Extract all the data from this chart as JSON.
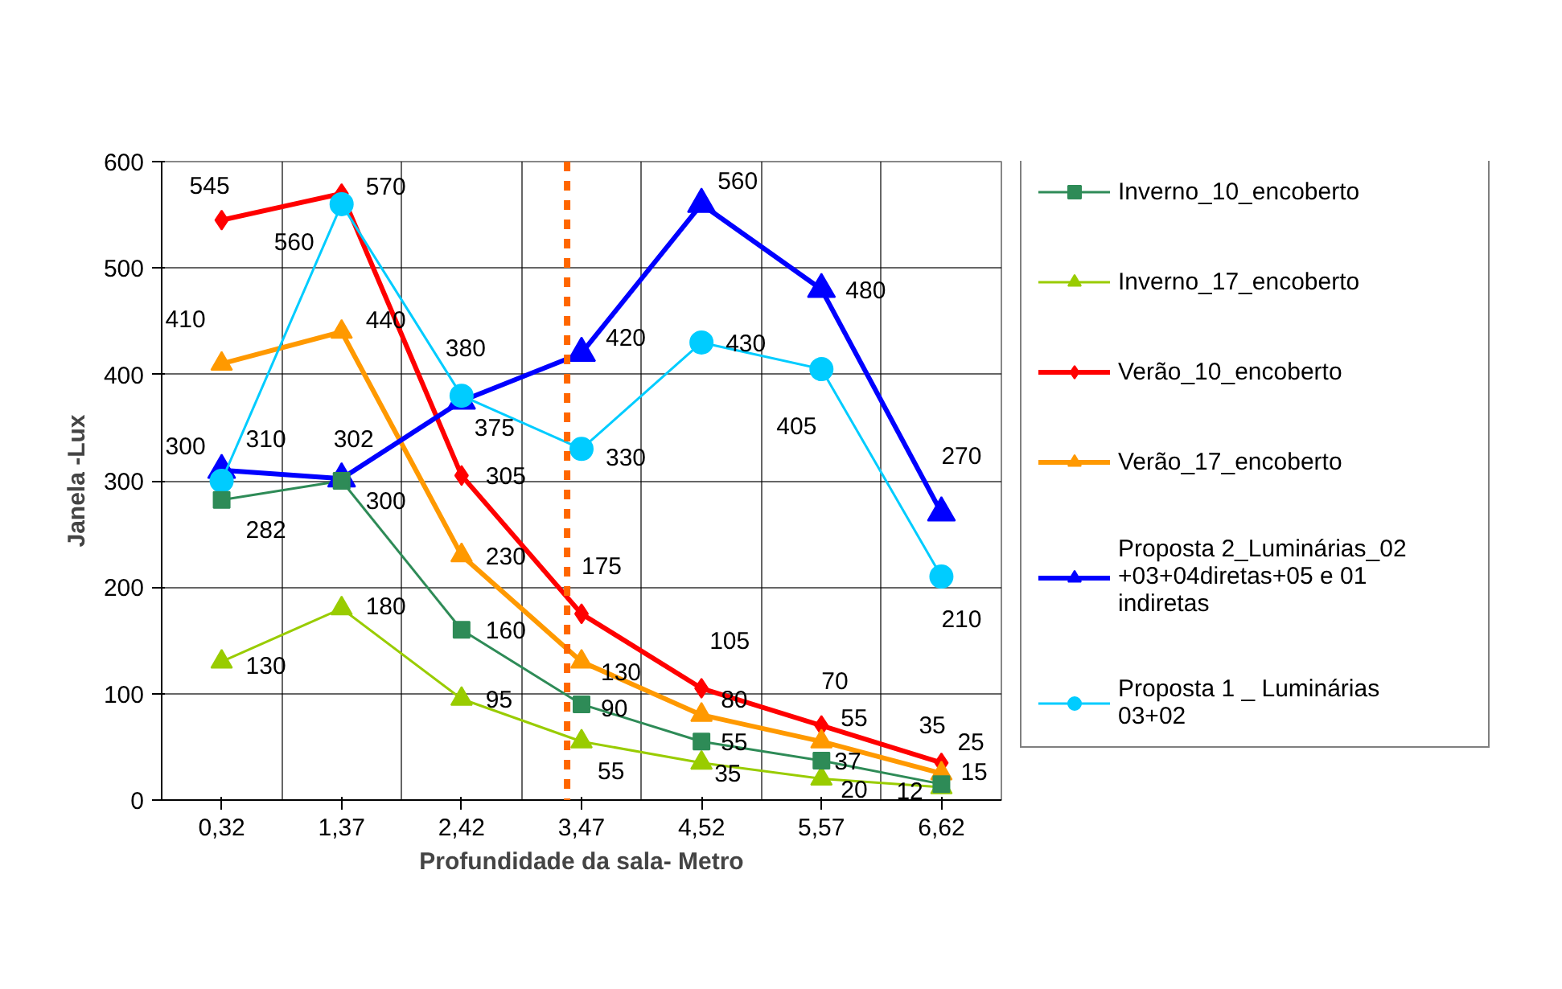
{
  "chart_data": {
    "type": "line",
    "xlabel": "Profundidade da sala- Metro",
    "ylabel": "Janela -Lux",
    "categories": [
      "0,32",
      "1,37",
      "2,42",
      "3,47",
      "4,52",
      "5,57",
      "6,62"
    ],
    "series": [
      {
        "name": "Inverno_10_encoberto",
        "color": "#2e8b57",
        "marker": "square",
        "values": [
          282,
          300,
          160,
          90,
          55,
          37,
          15
        ]
      },
      {
        "name": "Inverno_17_encoberto",
        "color": "#99cc00",
        "marker": "triangle",
        "values": [
          130,
          180,
          95,
          55,
          35,
          20,
          12
        ]
      },
      {
        "name": "Verão_10_encoberto",
        "color": "#ff0000",
        "marker": "diamond",
        "values": [
          545,
          570,
          305,
          175,
          105,
          70,
          35
        ]
      },
      {
        "name": "Verão_17_encoberto",
        "color": "#ff9900",
        "marker": "triangle",
        "values": [
          410,
          440,
          230,
          130,
          80,
          55,
          25
        ]
      },
      {
        "name": "Proposta 2_Luminárias_02+03+04diretas+05 e 01 indiretas",
        "color": "#0000ff",
        "marker": "triangle",
        "values": [
          310,
          302,
          375,
          420,
          560,
          480,
          270
        ]
      },
      {
        "name": "Proposta 1 _ Luminárias 03+02",
        "color": "#00ccff",
        "marker": "circle",
        "values": [
          300,
          560,
          380,
          330,
          430,
          405,
          210
        ]
      }
    ],
    "ylim": [
      0,
      600
    ],
    "yticks": [
      0,
      100,
      200,
      300,
      400,
      500,
      600
    ],
    "ref_lines": [
      {
        "axis": "x",
        "value": "3,47",
        "color": "#ff6600",
        "line_style": "dashed"
      }
    ],
    "grid": true,
    "legend": "right",
    "data_labels": true,
    "line_style": "solid"
  }
}
